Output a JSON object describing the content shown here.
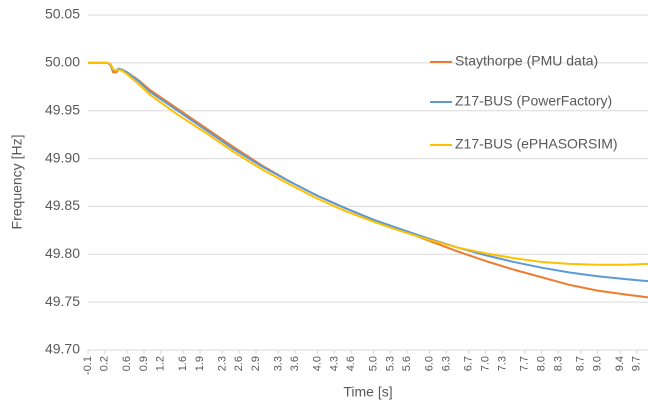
{
  "chart_data": {
    "type": "line",
    "xlabel": "Time [s]",
    "ylabel": "Frequency [Hz]",
    "x": [
      -0.1,
      0,
      0.1,
      0.2,
      0.25,
      0.3,
      0.35,
      0.4,
      0.45,
      0.5,
      0.6,
      0.8,
      1.0,
      1.5,
      2.0,
      2.5,
      3.0,
      3.5,
      4.0,
      4.5,
      5.0,
      5.5,
      6.0,
      6.5,
      7.0,
      7.5,
      8.0,
      8.5,
      9.0,
      9.5,
      9.9
    ],
    "series": [
      {
        "name": "Staythorpe (PMU data)",
        "color": "#ed7d31",
        "values": [
          50,
          50,
          50,
          50,
          50,
          49.998,
          49.99,
          49.99,
          49.993,
          49.993,
          49.99,
          49.982,
          49.972,
          49.952,
          49.932,
          49.912,
          49.893,
          49.876,
          49.861,
          49.848,
          49.836,
          49.825,
          49.814,
          49.803,
          49.793,
          49.784,
          49.776,
          49.768,
          49.762,
          49.758,
          49.755
        ]
      },
      {
        "name": "Z17-BUS (PowerFactory)",
        "color": "#5b9bd5",
        "values": [
          50,
          50,
          50,
          50,
          50,
          49.998,
          49.992,
          49.992,
          49.994,
          49.993,
          49.99,
          49.981,
          49.97,
          49.95,
          49.93,
          49.91,
          49.892,
          49.876,
          49.861,
          49.848,
          49.836,
          49.826,
          49.816,
          49.807,
          49.799,
          49.792,
          49.786,
          49.781,
          49.777,
          49.774,
          49.772
        ]
      },
      {
        "name": "Z17-BUS (ePHASORSIM)",
        "color": "#ffc000",
        "values": [
          50,
          50,
          50,
          50,
          50,
          49.999,
          49.993,
          49.992,
          49.993,
          49.992,
          49.988,
          49.978,
          49.967,
          49.946,
          49.927,
          49.907,
          49.889,
          49.873,
          49.858,
          49.845,
          49.834,
          49.824,
          49.815,
          49.807,
          49.801,
          49.796,
          49.792,
          49.79,
          49.789,
          49.789,
          49.79
        ]
      }
    ],
    "xlim": [
      -0.1,
      9.9
    ],
    "xticks": [
      -0.1,
      0.2,
      0.6,
      0.9,
      1.2,
      1.6,
      1.9,
      2.3,
      2.6,
      2.9,
      3.3,
      3.6,
      {
        "value": 4,
        "label": "4.0"
      },
      4.3,
      4.6,
      {
        "value": 5,
        "label": "5.0"
      },
      5.3,
      5.6,
      {
        "value": 6,
        "label": "6.0"
      },
      6.3,
      6.7,
      {
        "value": 7,
        "label": "7.0"
      },
      7.3,
      7.7,
      {
        "value": 8,
        "label": "8.0"
      },
      8.3,
      8.7,
      {
        "value": 9,
        "label": "9.0"
      },
      9.4,
      9.7
    ],
    "ylim": [
      49.7,
      50.05
    ],
    "yticks": [
      {
        "value": 49.7,
        "label": "49.70"
      },
      49.75,
      {
        "value": 49.8,
        "label": "49.80"
      },
      49.85,
      {
        "value": 49.9,
        "label": "49.90"
      },
      49.95,
      {
        "value": 50,
        "label": "50.00"
      },
      50.05
    ],
    "grid": true,
    "legend": "upper right"
  }
}
